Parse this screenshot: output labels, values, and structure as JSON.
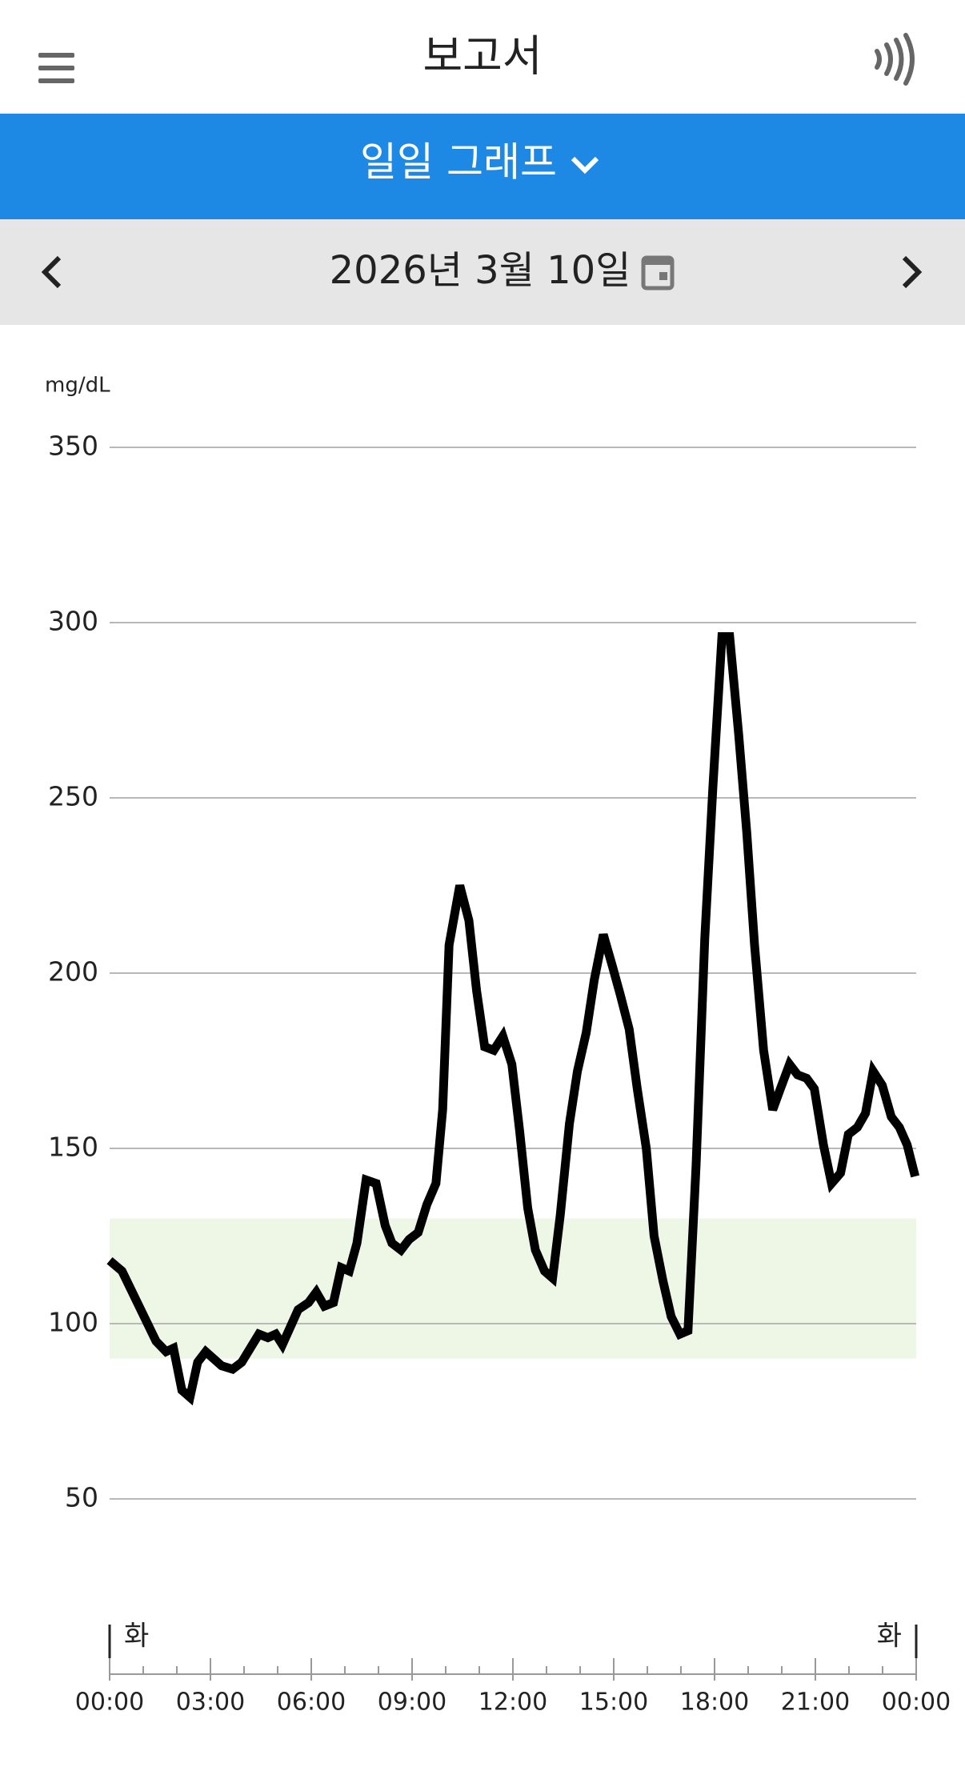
{
  "header": {
    "title": "보고서"
  },
  "tab": {
    "label": "일일 그래프"
  },
  "date_bar": {
    "date": "2026년 3월 10일"
  },
  "chart_data": {
    "type": "line",
    "y_label": "mg/dL",
    "x": [
      0,
      0.37,
      1.38,
      1.68,
      1.9,
      2.15,
      2.39,
      2.62,
      2.86,
      3.33,
      3.66,
      3.93,
      4.44,
      4.71,
      4.94,
      5.14,
      5.61,
      5.92,
      6.15,
      6.39,
      6.66,
      6.89,
      7.13,
      7.36,
      7.63,
      7.93,
      8.2,
      8.4,
      8.67,
      8.91,
      9.18,
      9.44,
      9.71,
      9.91,
      10.1,
      10.42,
      10.69,
      10.92,
      11.16,
      11.43,
      11.7,
      11.97,
      12.2,
      12.44,
      12.67,
      12.94,
      13.18,
      13.41,
      13.68,
      13.92,
      14.18,
      14.42,
      14.69,
      14.96,
      15.19,
      15.46,
      15.7,
      15.97,
      16.2,
      16.47,
      16.71,
      16.97,
      17.21,
      17.45,
      17.71,
      17.95,
      18.22,
      18.45,
      18.72,
      18.96,
      19.19,
      19.46,
      19.73,
      19.96,
      20.23,
      20.47,
      20.74,
      20.97,
      21.24,
      21.48,
      21.75,
      21.98,
      22.25,
      22.49,
      22.72,
      22.99,
      23.26,
      23.5,
      23.73,
      23.97
    ],
    "series": [
      {
        "color": "#000000",
        "values": [
          118,
          115,
          95,
          92,
          93,
          81,
          79,
          89,
          92,
          88,
          87,
          89,
          97,
          96,
          97,
          94,
          104,
          106,
          109,
          105,
          106,
          116,
          115,
          123,
          141,
          140,
          128,
          123,
          121,
          124,
          126,
          134,
          140,
          161,
          208,
          225,
          215,
          195,
          179,
          178,
          182,
          174,
          155,
          133,
          121,
          115,
          113,
          131,
          157,
          172,
          183,
          198,
          211,
          202,
          194,
          184,
          167,
          150,
          125,
          112,
          102,
          97,
          98,
          145,
          210,
          253,
          296,
          296,
          268,
          240,
          208,
          178,
          161,
          167,
          174,
          171,
          170,
          167,
          151,
          140,
          143,
          154,
          156,
          160,
          172,
          168,
          159,
          156,
          151,
          142
        ]
      }
    ],
    "target_range": [
      90,
      130
    ],
    "target_color": "#eef7e6",
    "xlim": [
      0,
      24
    ],
    "xticks": [
      {
        "value": 0,
        "label": "00:00"
      },
      {
        "value": 3,
        "label": "03:00"
      },
      {
        "value": 6,
        "label": "06:00"
      },
      {
        "value": 9,
        "label": "09:00"
      },
      {
        "value": 12,
        "label": "12:00"
      },
      {
        "value": 15,
        "label": "15:00"
      },
      {
        "value": 18,
        "label": "18:00"
      },
      {
        "value": 21,
        "label": "21:00"
      },
      {
        "value": 24,
        "label": "00:00"
      }
    ],
    "ylim": [
      50,
      350
    ],
    "yticks": [
      50,
      100,
      150,
      200,
      250,
      300,
      350
    ],
    "grid": true,
    "day_labels": [
      "화",
      "화"
    ]
  }
}
